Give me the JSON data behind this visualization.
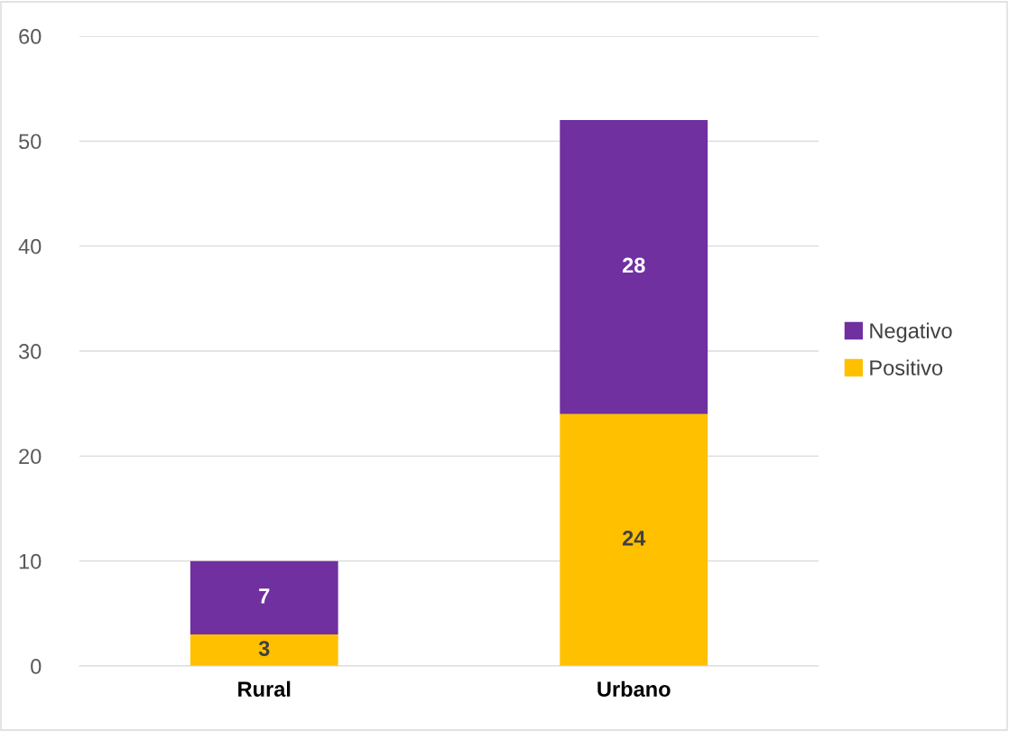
{
  "chart_data": {
    "type": "bar",
    "stacked": true,
    "categories": [
      "Rural",
      "Urbano"
    ],
    "series": [
      {
        "name": "Positivo",
        "color": "#ffc000",
        "values": [
          3,
          24
        ]
      },
      {
        "name": "Negativo",
        "color": "#7030a0",
        "values": [
          7,
          28
        ]
      }
    ],
    "ylim": [
      0,
      60
    ],
    "yticks": [
      0,
      10,
      20,
      30,
      40,
      50,
      60
    ],
    "grid": "y",
    "legend": "right",
    "data_labels": true
  }
}
